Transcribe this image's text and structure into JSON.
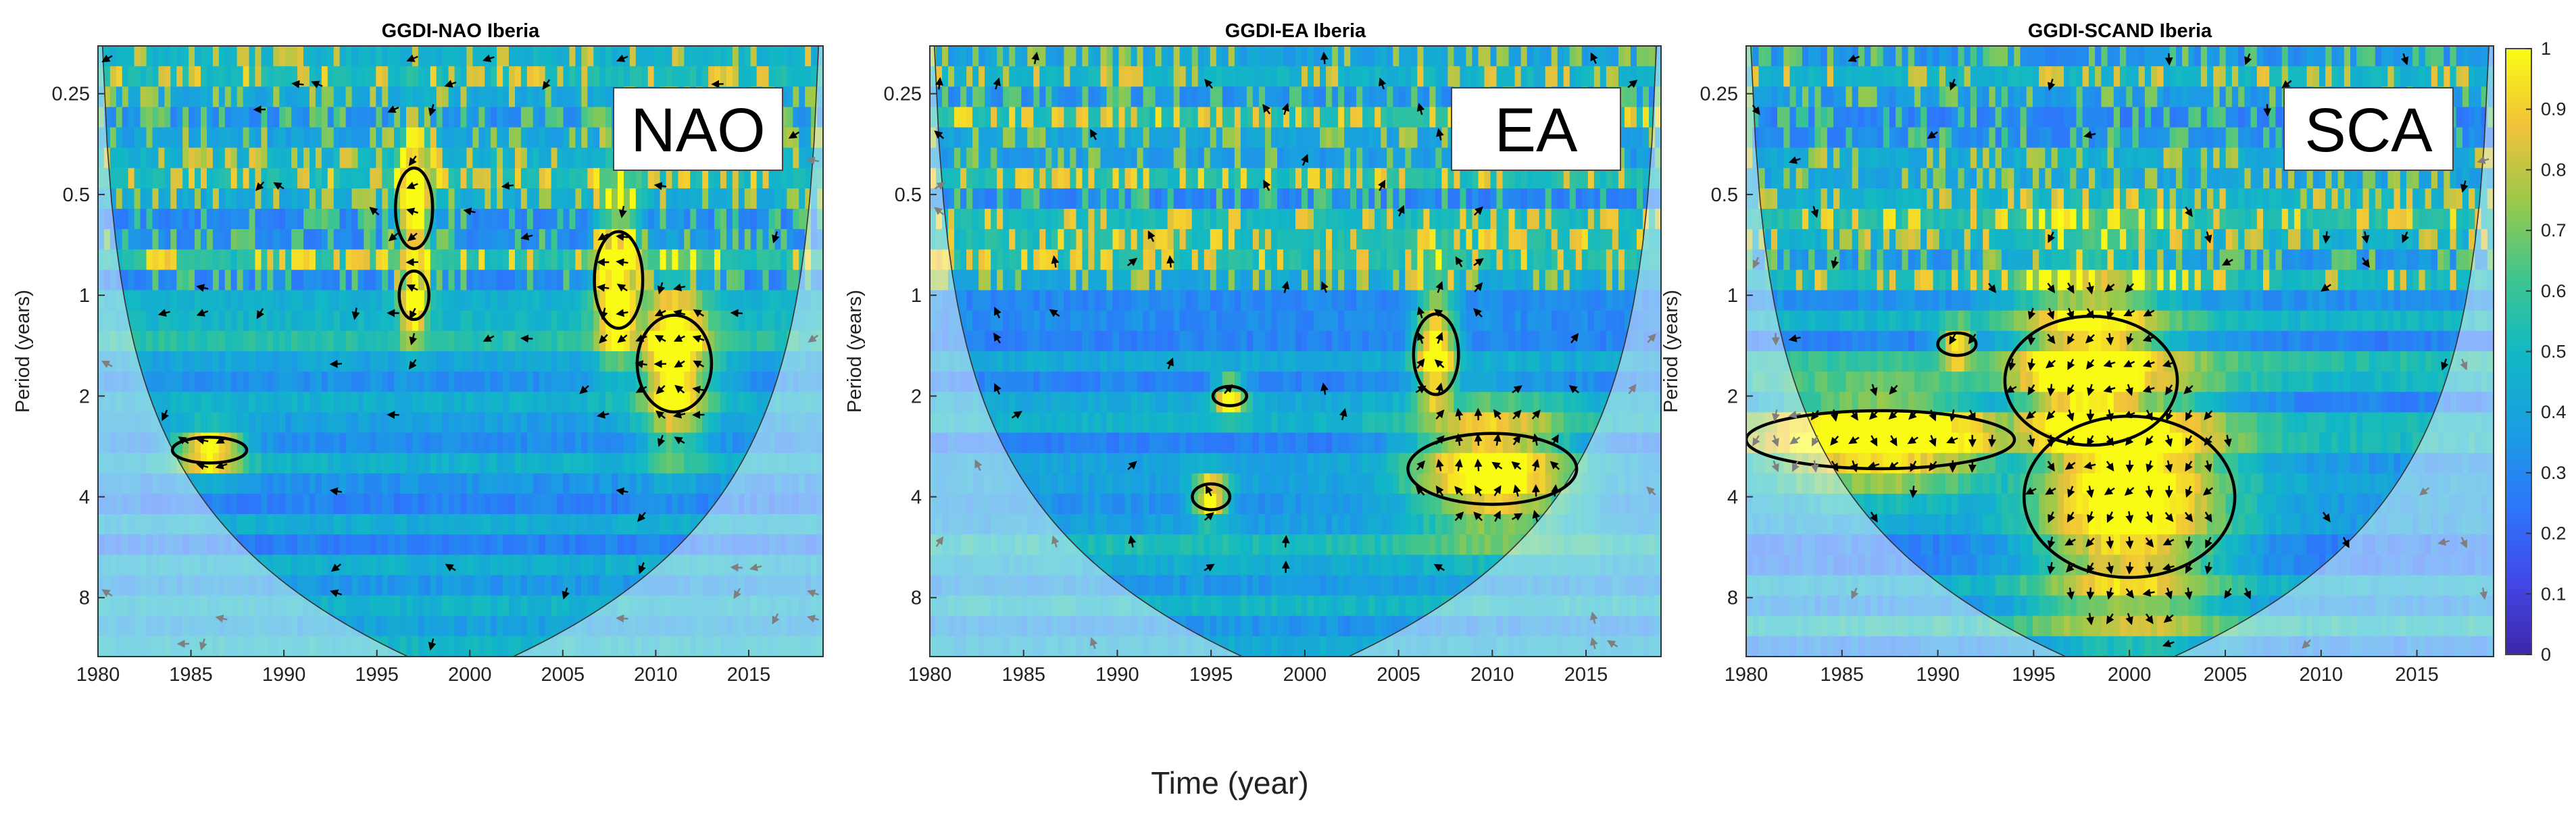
{
  "chart_data": [
    {
      "type": "heatmap",
      "title": "GGDI-NAO Iberia",
      "inset_label": "NAO",
      "ylabel": "Period (years)",
      "xlim": [
        1980,
        2019
      ],
      "ylim": [
        0.18,
        12
      ],
      "y_scale": "log2",
      "y_reversed": true,
      "x_ticks": [
        "1980",
        "1985",
        "1990",
        "1995",
        "2000",
        "2005",
        "2010",
        "2015"
      ],
      "y_ticks": [
        "0.25",
        "0.5",
        "1",
        "2",
        "4",
        "8"
      ],
      "significant_regions": [
        {
          "x": 1997,
          "p": 0.55,
          "rx": 1.0,
          "ry": 0.25
        },
        {
          "x": 2008,
          "p": 0.9,
          "rx": 1.3,
          "ry": 0.3
        },
        {
          "x": 2011,
          "p": 1.6,
          "rx": 2.0,
          "ry": 0.3
        },
        {
          "x": 1986,
          "p": 2.9,
          "rx": 2.0,
          "ry": 0.08
        },
        {
          "x": 1997,
          "p": 1.0,
          "rx": 0.8,
          "ry": 0.15
        }
      ]
    },
    {
      "type": "heatmap",
      "title": "GGDI-EA Iberia",
      "inset_label": "EA",
      "ylabel": "Period (years)",
      "xlim": [
        1980,
        2019
      ],
      "ylim": [
        0.18,
        12
      ],
      "y_scale": "log2",
      "y_reversed": true,
      "x_ticks": [
        "1980",
        "1985",
        "1990",
        "1995",
        "2000",
        "2005",
        "2010",
        "2015"
      ],
      "y_ticks": [
        "0.25",
        "0.5",
        "1",
        "2",
        "4",
        "8"
      ],
      "significant_regions": [
        {
          "x": 2010,
          "p": 3.3,
          "rx": 4.5,
          "ry": 0.22
        },
        {
          "x": 2007,
          "p": 1.5,
          "rx": 1.2,
          "ry": 0.25
        },
        {
          "x": 1995,
          "p": 4.0,
          "rx": 1.0,
          "ry": 0.08
        },
        {
          "x": 1996,
          "p": 2.0,
          "rx": 0.9,
          "ry": 0.06
        }
      ]
    },
    {
      "type": "heatmap",
      "title": "GGDI-SCAND Iberia",
      "inset_label": "SCA",
      "ylabel": "Period (years)",
      "xlim": [
        1980,
        2019
      ],
      "ylim": [
        0.18,
        12
      ],
      "y_scale": "log2",
      "y_reversed": true,
      "x_ticks": [
        "1980",
        "1985",
        "1990",
        "1995",
        "2000",
        "2005",
        "2010",
        "2015"
      ],
      "y_ticks": [
        "0.25",
        "0.5",
        "1",
        "2",
        "4",
        "8"
      ],
      "significant_regions": [
        {
          "x": 2000,
          "p": 4.0,
          "rx": 5.5,
          "ry": 0.5
        },
        {
          "x": 1998,
          "p": 1.8,
          "rx": 4.5,
          "ry": 0.4
        },
        {
          "x": 1987,
          "p": 2.7,
          "rx": 7.0,
          "ry": 0.18
        },
        {
          "x": 1991,
          "p": 1.4,
          "rx": 1.0,
          "ry": 0.07
        }
      ]
    }
  ],
  "colorbar": {
    "ticks": [
      "0",
      "0.1",
      "0.2",
      "0.3",
      "0.4",
      "0.5",
      "0.6",
      "0.7",
      "0.8",
      "0.9",
      "1"
    ],
    "min": 0,
    "max": 1,
    "colormap": "parula"
  },
  "xlabel": "Time (year)"
}
